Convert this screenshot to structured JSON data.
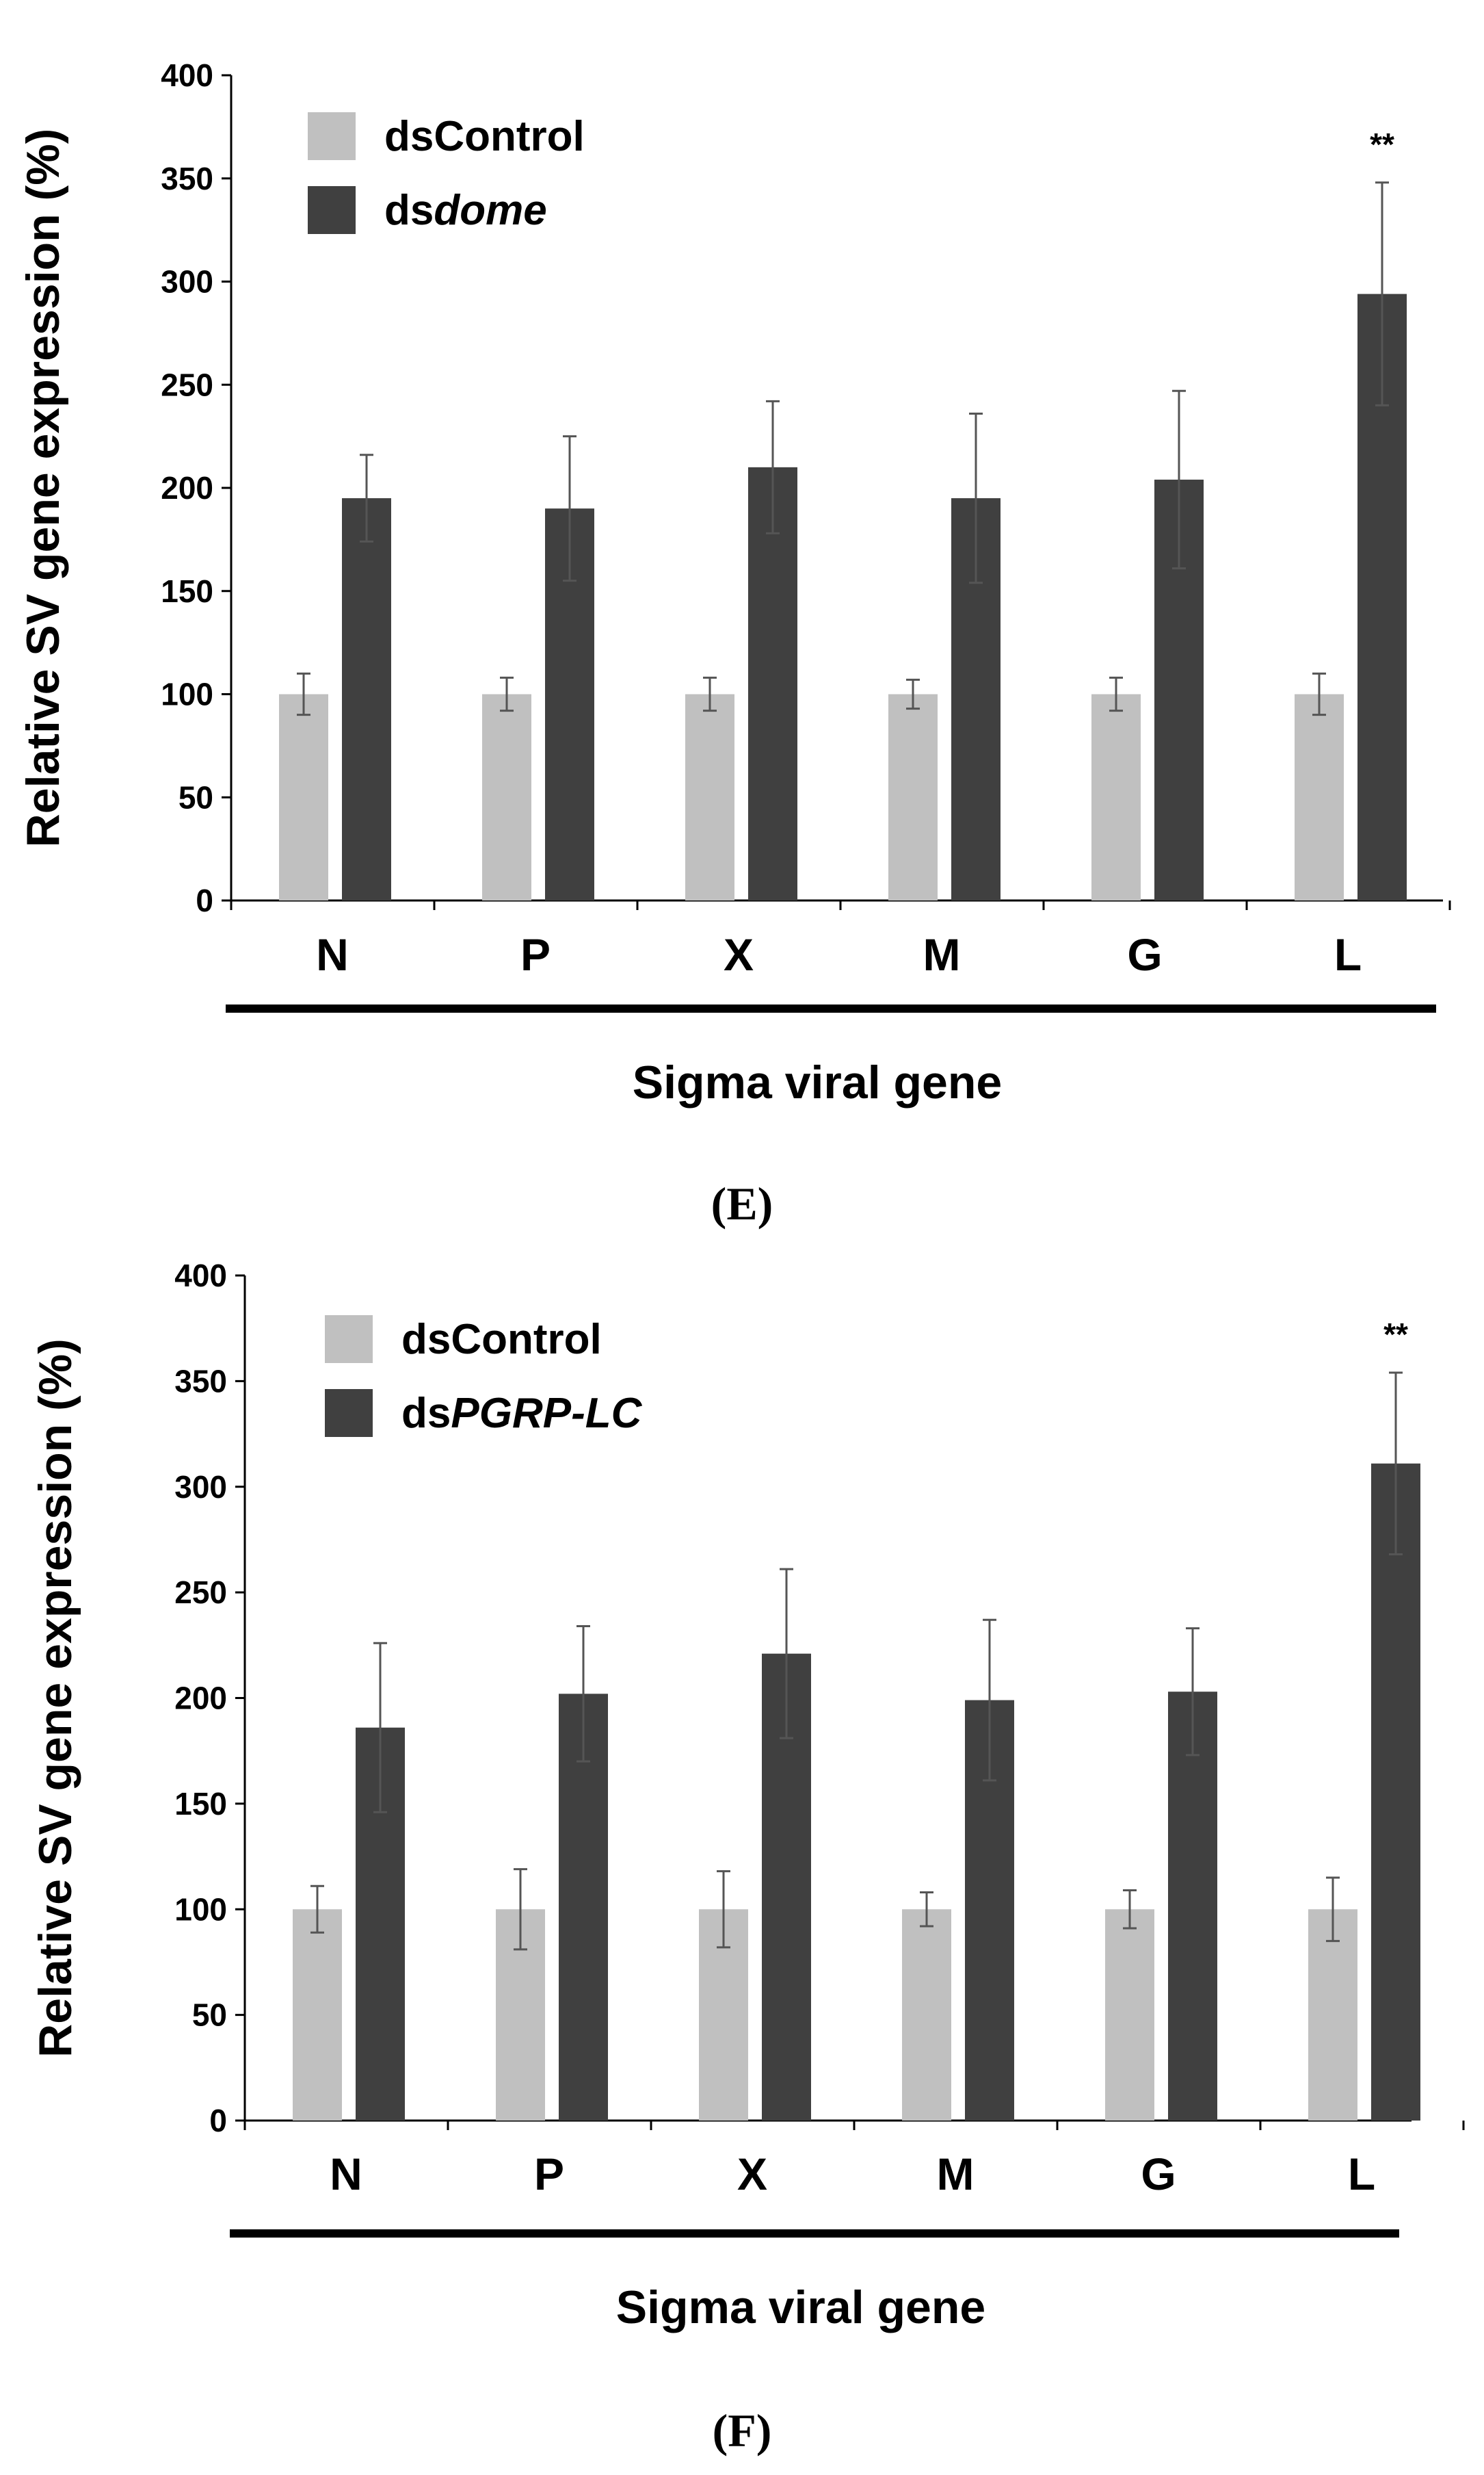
{
  "colors": {
    "control": "#c0c0c0",
    "treatment": "#404040",
    "error": "#555555",
    "axis": "#000000"
  },
  "chart_data": [
    {
      "type": "bar",
      "panel_label": "(E)",
      "ylabel": "Relative SV gene expression (%)",
      "xlabel": "Sigma viral gene",
      "ylim": [
        0,
        400
      ],
      "yticks": [
        0,
        50,
        100,
        150,
        200,
        250,
        300,
        350,
        400
      ],
      "categories": [
        "N",
        "P",
        "X",
        "M",
        "G",
        "L"
      ],
      "series": [
        {
          "name": "dsControl",
          "name_prefix": "dsControl",
          "name_italic": "",
          "values": [
            100,
            100,
            100,
            100,
            100,
            100
          ],
          "errors": [
            10,
            8,
            8,
            7,
            8,
            10
          ]
        },
        {
          "name": "dsdome",
          "name_prefix": "ds",
          "name_italic": "dome",
          "values": [
            195,
            190,
            210,
            195,
            204,
            294
          ],
          "errors": [
            21,
            35,
            32,
            41,
            43,
            54
          ]
        }
      ],
      "annotations": [
        {
          "category": "L",
          "text": "**"
        }
      ]
    },
    {
      "type": "bar",
      "panel_label": "(F)",
      "ylabel": "Relative SV gene expression (%)",
      "xlabel": "Sigma viral gene",
      "ylim": [
        0,
        400
      ],
      "yticks": [
        0,
        50,
        100,
        150,
        200,
        250,
        300,
        350,
        400
      ],
      "categories": [
        "N",
        "P",
        "X",
        "M",
        "G",
        "L"
      ],
      "series": [
        {
          "name": "dsControl",
          "name_prefix": "dsControl",
          "name_italic": "",
          "values": [
            100,
            100,
            100,
            100,
            100,
            100
          ],
          "errors": [
            11,
            19,
            18,
            8,
            9,
            15
          ]
        },
        {
          "name": "dsPGRP-LC",
          "name_prefix": "ds",
          "name_italic": "PGRP-LC",
          "values": [
            186,
            202,
            221,
            199,
            203,
            311
          ],
          "errors": [
            40,
            32,
            40,
            38,
            30,
            43
          ]
        }
      ],
      "annotations": [
        {
          "category": "L",
          "text": "**"
        }
      ]
    }
  ]
}
